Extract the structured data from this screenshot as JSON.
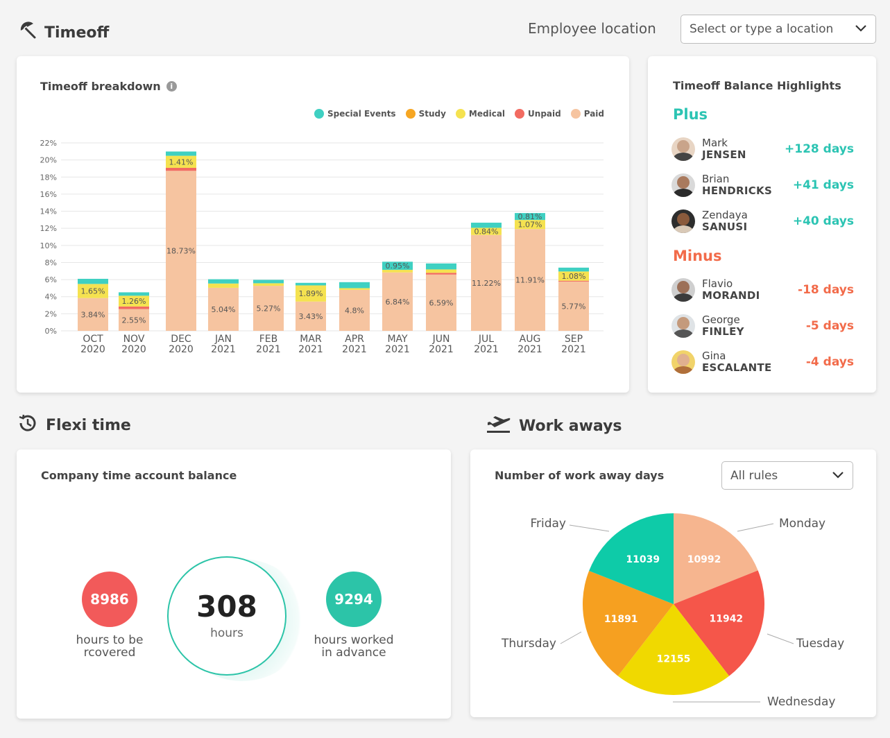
{
  "timeoff": {
    "title": "Timeoff",
    "location_label": "Employee location",
    "location_placeholder": "Select or type a location",
    "breakdown_title": "Timeoff breakdown",
    "legend": [
      {
        "name": "Special Events",
        "color": "#3fd0c2"
      },
      {
        "name": "Study",
        "color": "#f6a623"
      },
      {
        "name": "Medical",
        "color": "#f5e250"
      },
      {
        "name": "Unpaid",
        "color": "#f26b61"
      },
      {
        "name": "Paid",
        "color": "#f6c4a0"
      }
    ]
  },
  "chart_data": {
    "type": "bar",
    "title": "Timeoff breakdown",
    "stacked": true,
    "ylim": [
      0,
      22
    ],
    "yticks": [
      "0%",
      "2%",
      "4%",
      "6%",
      "8%",
      "10%",
      "12%",
      "14%",
      "16%",
      "18%",
      "20%",
      "22%"
    ],
    "categories": [
      [
        "OCT",
        "2020"
      ],
      [
        "NOV",
        "2020"
      ],
      [
        "DEC",
        "2020"
      ],
      [
        "JAN",
        "2021"
      ],
      [
        "FEB",
        "2021"
      ],
      [
        "MAR",
        "2021"
      ],
      [
        "APR",
        "2021"
      ],
      [
        "MAY",
        "2021"
      ],
      [
        "JUN",
        "2021"
      ],
      [
        "JUL",
        "2021"
      ],
      [
        "AUG",
        "2021"
      ],
      [
        "SEP",
        "2021"
      ]
    ],
    "series": [
      {
        "name": "Paid",
        "color": "#f6c4a0",
        "values": [
          3.84,
          2.55,
          18.73,
          5.04,
          5.27,
          3.43,
          4.8,
          6.84,
          6.59,
          11.22,
          11.91,
          5.77
        ],
        "labels": [
          "3.84%",
          "2.55%",
          "18.73%",
          "5.04%",
          "5.27%",
          "3.43%",
          "4.8%",
          "6.84%",
          "6.59%",
          "11.22%",
          "11.91%",
          "5.77%"
        ]
      },
      {
        "name": "Unpaid",
        "color": "#f26b61",
        "values": [
          0,
          0.3,
          0.35,
          0,
          0,
          0,
          0,
          0,
          0.2,
          0,
          0,
          0.1
        ],
        "labels": [
          "",
          "",
          "",
          "",
          "",
          "",
          "",
          "",
          "",
          "",
          "",
          ""
        ]
      },
      {
        "name": "Medical",
        "color": "#f5e250",
        "values": [
          1.65,
          1.26,
          1.41,
          0.5,
          0.3,
          1.89,
          0.2,
          0.3,
          0.4,
          0.84,
          1.07,
          1.08
        ],
        "labels": [
          "1.65%",
          "1.26%",
          "1.41%",
          "",
          "",
          "1.89%",
          "",
          "",
          "",
          "0.84%",
          "1.07%",
          "1.08%"
        ]
      },
      {
        "name": "Study",
        "color": "#f6a623",
        "values": [
          0,
          0,
          0,
          0,
          0,
          0,
          0,
          0,
          0,
          0,
          0,
          0
        ],
        "labels": [
          "",
          "",
          "",
          "",
          "",
          "",
          "",
          "",
          "",
          "",
          "",
          ""
        ]
      },
      {
        "name": "Special Events",
        "color": "#3fd0c2",
        "values": [
          0.6,
          0.4,
          0.5,
          0.5,
          0.4,
          0.3,
          0.7,
          0.95,
          0.7,
          0.6,
          0.81,
          0.45
        ],
        "labels": [
          "",
          "",
          "",
          "",
          "",
          "",
          "",
          "0.95%",
          "",
          "",
          "0.81%",
          ""
        ]
      }
    ]
  },
  "highlights": {
    "title": "Timeoff Balance Highlights",
    "plus_label": "Plus",
    "minus_label": "Minus",
    "plus_color": "#2cc4b3",
    "minus_color": "#f26b4a",
    "plus": [
      {
        "first": "Mark",
        "last": "JENSEN",
        "days": "+128 days"
      },
      {
        "first": "Brian",
        "last": "HENDRICKS",
        "days": "+41 days"
      },
      {
        "first": "Zendaya",
        "last": "SANUSI",
        "days": "+40 days"
      }
    ],
    "minus": [
      {
        "first": "Flavio",
        "last": "MORANDI",
        "days": "-18 days"
      },
      {
        "first": "George",
        "last": "FINLEY",
        "days": "-5 days"
      },
      {
        "first": "Gina",
        "last": "ESCALANTE",
        "days": "-4 days"
      }
    ]
  },
  "flexi": {
    "title": "Flexi time",
    "card_title": "Company time account balance",
    "left_value": "8986",
    "left_label_1": "hours to be",
    "left_label_2": "rcovered",
    "center_value": "308",
    "center_label": "hours",
    "right_value": "9294",
    "right_label_1": "hours worked",
    "right_label_2": "in advance",
    "left_color": "#f25a5a",
    "right_color": "#2cc4a8"
  },
  "workaway": {
    "title": "Work aways",
    "card_title": "Number of work away days",
    "filter": "All rules"
  },
  "pie_data": {
    "type": "pie",
    "title": "Number of work away days",
    "slices": [
      {
        "label": "Monday",
        "value": 10992,
        "color": "#f6b58f"
      },
      {
        "label": "Tuesday",
        "value": 11942,
        "color": "#f5564a"
      },
      {
        "label": "Wednesday",
        "value": 12155,
        "color": "#f0d900"
      },
      {
        "label": "Thursday",
        "value": 11891,
        "color": "#f6a020"
      },
      {
        "label": "Friday",
        "value": 11039,
        "color": "#0ecba8"
      }
    ]
  }
}
